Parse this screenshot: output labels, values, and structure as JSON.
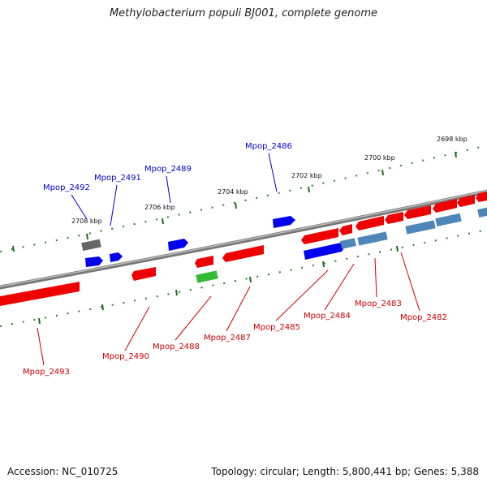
{
  "title": "Methylobacterium populi BJ001, complete genome",
  "accession": "Accession: NC_010725",
  "summary": "Topology: circular; Length: 5,800,441 bp; Genes: 5,388",
  "scale": {
    "ticks": [
      "2708 kbp",
      "2706 kbp",
      "2704 kbp",
      "2702 kbp",
      "2700 kbp",
      "2698 kbp"
    ]
  },
  "genes": {
    "top": [
      "Mpop_2492",
      "Mpop_2491",
      "Mpop_2489",
      "Mpop_2486"
    ],
    "bottom": [
      "Mpop_2493",
      "Mpop_2490",
      "Mpop_2488",
      "Mpop_2487",
      "Mpop_2485",
      "Mpop_2484",
      "Mpop_2483",
      "Mpop_2482"
    ]
  },
  "colors": {
    "forward_gene": "#0000ee",
    "reverse_gene": "#ee0000",
    "label_forward": "#0000cc",
    "label_reverse": "#cc0000",
    "rna_gene": "#33bb33",
    "other_gene": "#4f86b9",
    "pseudo_gene": "#666666",
    "backbone": "#808080",
    "tick": "#2a7a2a"
  }
}
